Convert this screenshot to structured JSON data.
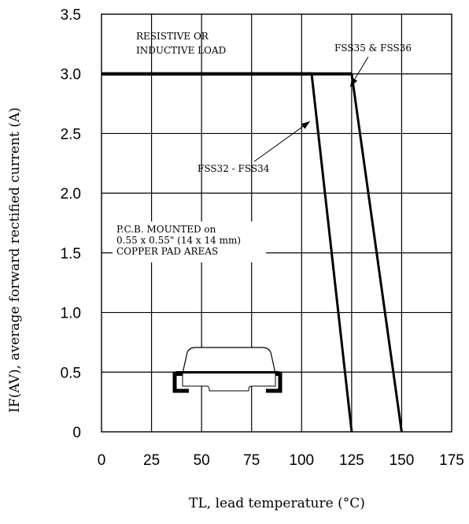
{
  "chart_data": {
    "type": "line",
    "title": "",
    "xlabel": "TL, lead temperature (°C)",
    "ylabel": "IF(AV), average forward rectified current (A)",
    "xlim": [
      0,
      175
    ],
    "ylim": [
      0,
      3.5
    ],
    "grid": true,
    "x_ticks": [
      0,
      25,
      50,
      75,
      100,
      125,
      150,
      175
    ],
    "x_tick_labels": [
      "0",
      "25",
      "50",
      "75",
      "100",
      "125",
      "150",
      "175"
    ],
    "y_ticks": [
      0,
      0.5,
      1.0,
      1.5,
      2.0,
      2.5,
      3.0,
      3.5
    ],
    "y_tick_labels": [
      "0",
      "0.5",
      "1.0",
      "1.5",
      "2.0",
      "2.5",
      "3.0",
      "3.5"
    ],
    "series": [
      {
        "name": "FSS32 - FSS34",
        "x": [
          0,
          105,
          125
        ],
        "y": [
          3.0,
          3.0,
          0
        ]
      },
      {
        "name": "FSS35 & FSS36",
        "x": [
          0,
          125,
          150
        ],
        "y": [
          3.0,
          3.0,
          0
        ]
      }
    ],
    "annotations": [
      {
        "lines": [
          "RESISTIVE OR",
          "INDUCTIVE LOAD"
        ]
      },
      {
        "lines": [
          "FSS35 & FSS36"
        ]
      },
      {
        "lines": [
          "FSS32 - FSS34"
        ]
      },
      {
        "lines": [
          "P.C.B. MOUNTED on",
          "0.55 x 0.55\" (14 x 14 mm)",
          "COPPER PAD AREAS"
        ]
      }
    ],
    "colors": {
      "line": "#000000",
      "grid": "#000000",
      "background": "#ffffff"
    }
  }
}
